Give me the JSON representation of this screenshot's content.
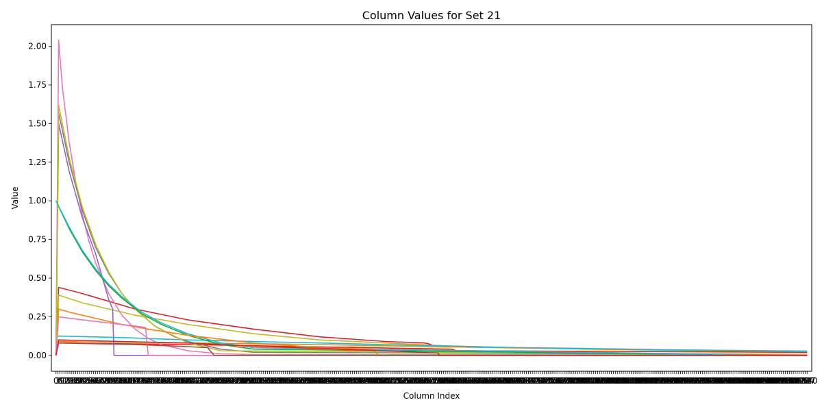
{
  "chart_data": {
    "type": "line",
    "title": "Column Values for Set 21",
    "xlabel": "Column Index",
    "ylabel": "Value",
    "xlim": [
      -7,
      1147
    ],
    "ylim": [
      -0.103,
      2.14
    ],
    "yticks": [
      0.0,
      0.25,
      0.5,
      0.75,
      1.0,
      1.25,
      1.5,
      1.75,
      2.0
    ],
    "ytick_labels": [
      "0.00",
      "0.25",
      "0.50",
      "0.75",
      "1.00",
      "1.25",
      "1.50",
      "1.75",
      "2.00"
    ],
    "xtick_step": 3,
    "xtick_labels_note_visible": [
      "0",
      "2",
      "5",
      "7",
      "10"
    ],
    "legend": "none",
    "grid": false,
    "series": [
      {
        "color": "#d62728",
        "x": [
          0,
          4,
          40,
          80,
          120,
          200,
          300,
          400,
          500,
          560,
          570
        ],
        "values": [
          0,
          0.44,
          0.4,
          0.35,
          0.3,
          0.23,
          0.17,
          0.12,
          0.09,
          0.08,
          0.07
        ]
      },
      {
        "color": "#d62728",
        "x": [
          4,
          200,
          400,
          600,
          608,
          1140
        ],
        "values": [
          0.08,
          0.07,
          0.055,
          0.04,
          0.03,
          0.02
        ]
      },
      {
        "color": "#bcbd22",
        "x": [
          0,
          4,
          40,
          80,
          120,
          200,
          300,
          400,
          500,
          600,
          700,
          800,
          900,
          1000,
          1140
        ],
        "values": [
          0,
          0.39,
          0.34,
          0.3,
          0.26,
          0.2,
          0.14,
          0.1,
          0.08,
          0.06,
          0.05,
          0.04,
          0.035,
          0.03,
          0.025
        ]
      },
      {
        "color": "#ff7f0e",
        "x": [
          0,
          4,
          100,
          200,
          300,
          400,
          500,
          600,
          700,
          800,
          900,
          1000,
          1140
        ],
        "values": [
          0.09,
          0.09,
          0.085,
          0.08,
          0.075,
          0.07,
          0.062,
          0.055,
          0.048,
          0.042,
          0.036,
          0.031,
          0.026
        ]
      },
      {
        "color": "#17becf",
        "x": [
          0,
          4,
          100,
          200,
          300,
          400,
          500,
          600,
          700,
          800,
          900,
          1000,
          1140
        ],
        "values": [
          0.12,
          0.125,
          0.115,
          0.1,
          0.09,
          0.08,
          0.07,
          0.06,
          0.05,
          0.045,
          0.038,
          0.033,
          0.028
        ]
      },
      {
        "color": "#e377c2",
        "x": [
          0,
          4,
          10,
          20,
          30,
          40,
          50,
          60,
          80,
          100,
          120,
          140,
          160,
          200,
          250,
          300,
          1140
        ],
        "values": [
          0,
          2.04,
          1.72,
          1.38,
          1.12,
          0.91,
          0.74,
          0.6,
          0.4,
          0.26,
          0.17,
          0.11,
          0.07,
          0.03,
          0.01,
          0.005,
          0.003
        ]
      },
      {
        "color": "#7f7f7f",
        "x": [
          0,
          4,
          20,
          40,
          60,
          80,
          100,
          120,
          150,
          180,
          200,
          250,
          300,
          1140
        ],
        "values": [
          0,
          1.57,
          1.25,
          0.94,
          0.7,
          0.53,
          0.4,
          0.3,
          0.19,
          0.12,
          0.09,
          0.04,
          0.02,
          0.005
        ]
      },
      {
        "color": "#9467bd",
        "x": [
          0,
          4,
          20,
          40,
          60,
          80,
          86,
          88,
          1140
        ],
        "values": [
          0,
          1.5,
          1.19,
          0.89,
          0.66,
          0.36,
          0.3,
          0.0,
          0.0
        ]
      },
      {
        "color": "#bcbd22",
        "x": [
          0,
          4,
          20,
          40,
          60,
          80,
          100,
          120,
          150,
          200,
          250,
          1140
        ],
        "values": [
          0,
          1.62,
          1.28,
          0.96,
          0.72,
          0.54,
          0.4,
          0.3,
          0.19,
          0.08,
          0.03,
          0.005
        ]
      },
      {
        "color": "#2ca02c",
        "x": [
          0,
          20,
          40,
          60,
          80,
          100,
          130,
          160,
          200,
          250,
          300,
          1140
        ],
        "values": [
          1.0,
          0.82,
          0.67,
          0.55,
          0.45,
          0.37,
          0.27,
          0.2,
          0.13,
          0.07,
          0.04,
          0.0
        ]
      },
      {
        "color": "#17becf",
        "x": [
          0,
          20,
          40,
          60,
          80,
          100,
          130,
          160,
          200,
          250,
          300,
          1140
        ],
        "values": [
          1.0,
          0.83,
          0.68,
          0.56,
          0.46,
          0.38,
          0.28,
          0.21,
          0.14,
          0.08,
          0.05,
          0.0
        ]
      },
      {
        "color": "#ff7f0e",
        "x": [
          0,
          4,
          20,
          40,
          60,
          80,
          100,
          140,
          200,
          300,
          400,
          480,
          490,
          1140
        ],
        "values": [
          0,
          0.3,
          0.28,
          0.26,
          0.24,
          0.22,
          0.2,
          0.17,
          0.13,
          0.08,
          0.05,
          0.04,
          0.0,
          0.0
        ]
      },
      {
        "color": "#e377c2",
        "x": [
          0,
          4,
          40,
          80,
          120,
          136,
          140,
          1140
        ],
        "values": [
          0,
          0.25,
          0.23,
          0.21,
          0.19,
          0.18,
          0.0,
          0.0
        ]
      },
      {
        "color": "#8c564b",
        "x": [
          0,
          4,
          60,
          120,
          180,
          230,
          240,
          1140
        ],
        "values": [
          0,
          0.08,
          0.075,
          0.07,
          0.06,
          0.05,
          0.0,
          0.0
        ]
      },
      {
        "color": "#d62728",
        "x": [
          0,
          4,
          100,
          200,
          300,
          400,
          500,
          580,
          582,
          1140
        ],
        "values": [
          0,
          0.1,
          0.09,
          0.08,
          0.06,
          0.045,
          0.03,
          0.015,
          0.0,
          0.0
        ]
      }
    ]
  }
}
